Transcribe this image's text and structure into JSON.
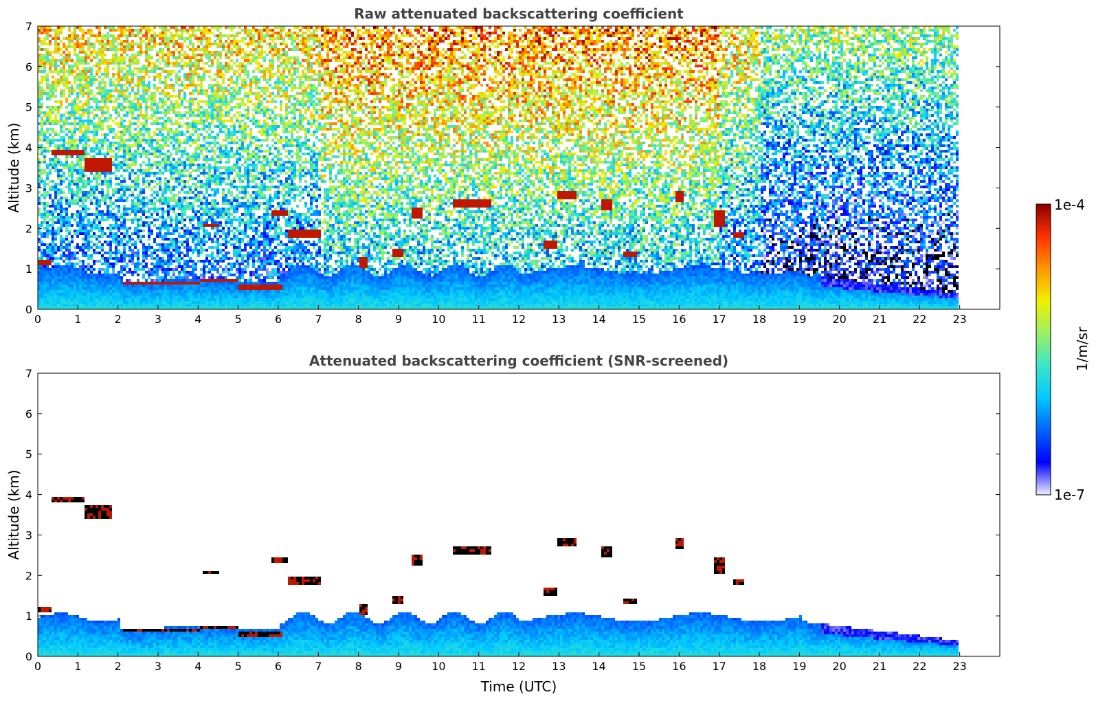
{
  "chart_data": [
    {
      "type": "heatmap",
      "title": "Raw attenuated backscattering coefficient",
      "xlabel": "",
      "ylabel": "Altitude (km)",
      "xlim": [
        0,
        24
      ],
      "ylim": [
        0,
        7
      ],
      "x_ticks": [
        "0",
        "1",
        "2",
        "3",
        "4",
        "5",
        "6",
        "7",
        "8",
        "9",
        "10",
        "11",
        "12",
        "13",
        "14",
        "15",
        "16",
        "17",
        "18",
        "19",
        "20",
        "21",
        "22",
        "23"
      ],
      "y_ticks": [
        "0",
        "1",
        "2",
        "3",
        "4",
        "5",
        "6",
        "7"
      ],
      "data_end_hour": 22.95,
      "screened": false,
      "cloud_layers": [
        {
          "t0": 0.3,
          "t1": 1.1,
          "alt": 3.9,
          "thick": 0.18
        },
        {
          "t0": 1.1,
          "t1": 1.8,
          "alt": 3.6,
          "thick": 0.35
        },
        {
          "t0": 0.0,
          "t1": 0.3,
          "alt": 1.2,
          "thick": 0.15
        },
        {
          "t0": 2.1,
          "t1": 4.0,
          "alt": 0.68,
          "thick": 0.12
        },
        {
          "t0": 4.0,
          "t1": 5.0,
          "alt": 0.75,
          "thick": 0.12
        },
        {
          "t0": 5.0,
          "t1": 6.1,
          "alt": 0.55,
          "thick": 0.14
        },
        {
          "t0": 4.1,
          "t1": 4.5,
          "alt": 2.1,
          "thick": 0.1
        },
        {
          "t0": 6.2,
          "t1": 7.0,
          "alt": 1.9,
          "thick": 0.2
        },
        {
          "t0": 5.8,
          "t1": 6.2,
          "alt": 2.4,
          "thick": 0.1
        },
        {
          "t0": 9.3,
          "t1": 9.6,
          "alt": 2.4,
          "thick": 0.25
        },
        {
          "t0": 10.3,
          "t1": 11.3,
          "alt": 2.65,
          "thick": 0.22
        },
        {
          "t0": 12.9,
          "t1": 13.4,
          "alt": 2.85,
          "thick": 0.25
        },
        {
          "t0": 14.0,
          "t1": 14.3,
          "alt": 2.6,
          "thick": 0.3
        },
        {
          "t0": 12.6,
          "t1": 12.9,
          "alt": 1.6,
          "thick": 0.2
        },
        {
          "t0": 14.6,
          "t1": 14.9,
          "alt": 1.4,
          "thick": 0.15
        },
        {
          "t0": 16.8,
          "t1": 17.1,
          "alt": 2.3,
          "thick": 0.4
        },
        {
          "t0": 17.3,
          "t1": 17.6,
          "alt": 1.85,
          "thick": 0.15
        },
        {
          "t0": 8.0,
          "t1": 8.2,
          "alt": 1.2,
          "thick": 0.25
        },
        {
          "t0": 8.8,
          "t1": 9.1,
          "alt": 1.4,
          "thick": 0.2
        },
        {
          "t0": 15.9,
          "t1": 16.1,
          "alt": 2.8,
          "thick": 0.25
        }
      ]
    },
    {
      "type": "heatmap",
      "title": "Attenuated backscattering coefficient (SNR-screened)",
      "xlabel": "Time (UTC)",
      "ylabel": "Altitude (km)",
      "xlim": [
        0,
        24
      ],
      "ylim": [
        0,
        7
      ],
      "x_ticks": [
        "0",
        "1",
        "2",
        "3",
        "4",
        "5",
        "6",
        "7",
        "8",
        "9",
        "10",
        "11",
        "12",
        "13",
        "14",
        "15",
        "16",
        "17",
        "18",
        "19",
        "20",
        "21",
        "22",
        "23"
      ],
      "y_ticks": [
        "0",
        "1",
        "2",
        "3",
        "4",
        "5",
        "6",
        "7"
      ],
      "data_end_hour": 22.95,
      "screened": true
    }
  ],
  "colorbar": {
    "label": "1/m/sr",
    "max_label": "1e-4",
    "min_label": "1e-7",
    "scale": "log"
  },
  "colors": {
    "colormap": [
      "#eeeeff",
      "#0000ff",
      "#0064ff",
      "#00c8ff",
      "#3ce6c8",
      "#9bf064",
      "#f0f000",
      "#ff9600",
      "#ff3200",
      "#8b0000"
    ],
    "title_color": "#444444"
  }
}
